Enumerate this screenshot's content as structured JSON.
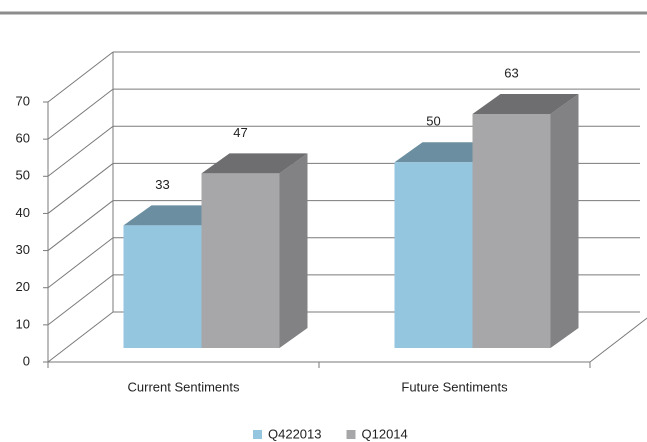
{
  "chart_data": {
    "type": "bar3d",
    "categories": [
      "Current Sentiments",
      "Future Sentiments"
    ],
    "series": [
      {
        "name": "Q422013",
        "color": "#94c6df",
        "values": [
          33,
          50
        ]
      },
      {
        "name": "Q12014",
        "color": "#a7a7a9",
        "values": [
          47,
          63
        ]
      }
    ],
    "ylim": [
      0,
      70
    ],
    "yticks": [
      0,
      10,
      20,
      30,
      40,
      50,
      60,
      70
    ],
    "grid": true,
    "data_labels": true,
    "legend": "bottom"
  }
}
